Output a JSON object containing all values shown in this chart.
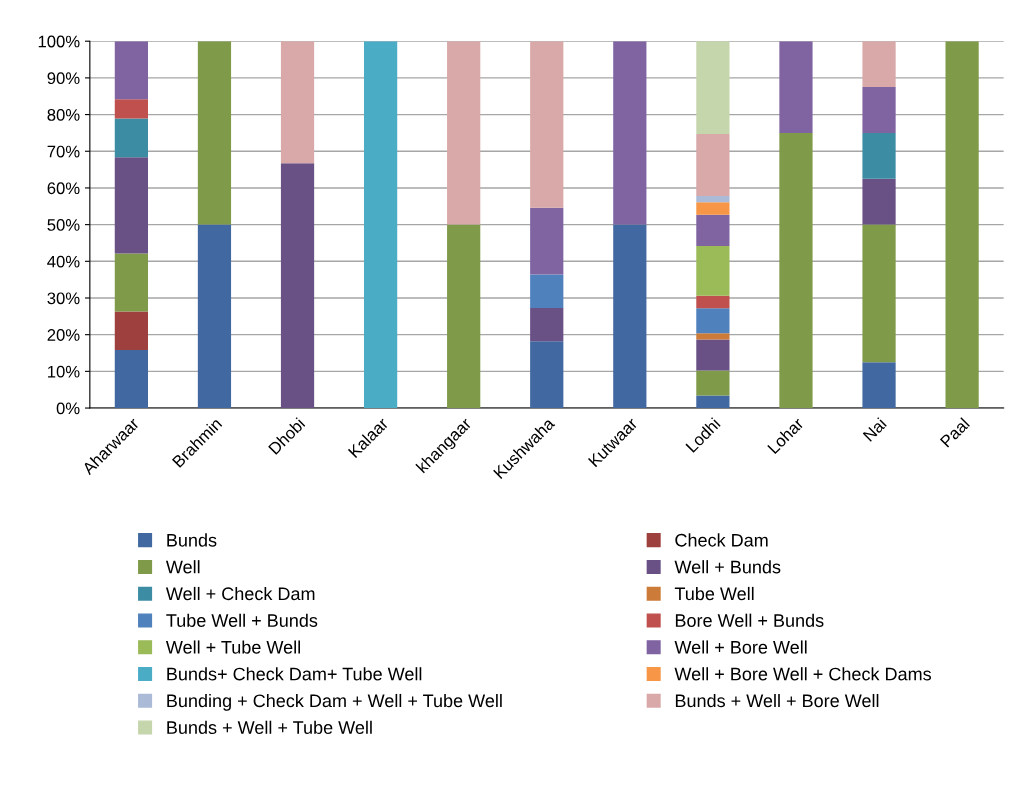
{
  "chart_data": {
    "type": "bar",
    "stacked": true,
    "grid": "y",
    "legend": "bottom",
    "categories": [
      "Aharwaar",
      "Brahmin",
      "Dhobi",
      "Kalaar",
      "khangaar",
      "Kushwaha",
      "Kutwaar",
      "Lodhi",
      "Lohar",
      "Nai",
      "Paal"
    ],
    "ylim": [
      0,
      100
    ],
    "yticks": [
      {
        "value": 0,
        "label": "0%"
      },
      {
        "value": 10,
        "label": "10%"
      },
      {
        "value": 20,
        "label": "20%"
      },
      {
        "value": 30,
        "label": "30%"
      },
      {
        "value": 40,
        "label": "40%"
      },
      {
        "value": 50,
        "label": "50%"
      },
      {
        "value": 60,
        "label": "60%"
      },
      {
        "value": 70,
        "label": "70%"
      },
      {
        "value": 80,
        "label": "80%"
      },
      {
        "value": 90,
        "label": "90%"
      },
      {
        "value": 100,
        "label": "100%"
      }
    ],
    "series": [
      {
        "name": "Bunds",
        "color": "#4168a0",
        "values": [
          15.8,
          50,
          null,
          null,
          null,
          18.2,
          50,
          3.4,
          null,
          12.5,
          null
        ]
      },
      {
        "name": "Check Dam",
        "color": "#9e413e",
        "values": [
          10.5,
          null,
          null,
          null,
          null,
          null,
          null,
          null,
          null,
          null,
          null
        ]
      },
      {
        "name": "Well",
        "color": "#7f9a48",
        "values": [
          15.8,
          50,
          null,
          null,
          50,
          null,
          null,
          6.8,
          75,
          37.5,
          100
        ]
      },
      {
        "name": "Well + Bunds",
        "color": "#695185",
        "values": [
          26.3,
          null,
          66.7,
          null,
          null,
          9.1,
          null,
          8.5,
          null,
          12.5,
          null
        ]
      },
      {
        "name": "Well + Check Dam",
        "color": "#3c8da3",
        "values": [
          10.5,
          null,
          null,
          null,
          null,
          null,
          null,
          null,
          null,
          12.5,
          null
        ]
      },
      {
        "name": "Tube Well",
        "color": "#cc7b38",
        "values": [
          null,
          null,
          null,
          null,
          null,
          null,
          null,
          1.7,
          null,
          null,
          null
        ]
      },
      {
        "name": "Tube Well + Bunds",
        "color": "#4f81bd",
        "values": [
          null,
          null,
          null,
          null,
          null,
          9.1,
          null,
          6.8,
          null,
          null,
          null
        ]
      },
      {
        "name": "Bore Well + Bunds",
        "color": "#c0504d",
        "values": [
          5.3,
          null,
          null,
          null,
          null,
          null,
          null,
          3.4,
          null,
          null,
          null
        ]
      },
      {
        "name": "Well + Tube Well",
        "color": "#9bbb59",
        "values": [
          null,
          null,
          null,
          null,
          null,
          null,
          null,
          13.6,
          null,
          null,
          null
        ]
      },
      {
        "name": "Well + Bore Well",
        "color": "#8064a2",
        "values": [
          15.8,
          null,
          null,
          null,
          null,
          18.2,
          50,
          8.5,
          25,
          12.5,
          null
        ]
      },
      {
        "name": "Bunds+ Check Dam+ Tube Well",
        "color": "#4bacc6",
        "values": [
          null,
          null,
          null,
          100,
          null,
          null,
          null,
          null,
          null,
          null,
          null
        ]
      },
      {
        "name": "Well + Bore Well + Check Dams",
        "color": "#f79646",
        "values": [
          null,
          null,
          null,
          null,
          null,
          null,
          null,
          3.4,
          null,
          null,
          null
        ]
      },
      {
        "name": "Bunding + Check Dam + Well + Tube Well",
        "color": "#aabad7",
        "values": [
          null,
          null,
          null,
          null,
          null,
          null,
          null,
          1.7,
          null,
          null,
          null
        ]
      },
      {
        "name": "Bunds + Well + Bore Well",
        "color": "#d9a9a9",
        "values": [
          null,
          null,
          33.3,
          null,
          50,
          45.4,
          null,
          16.9,
          null,
          12.5,
          null
        ]
      },
      {
        "name": "Bunds + Well + Tube Well",
        "color": "#c6d6ac",
        "values": [
          null,
          null,
          null,
          null,
          null,
          null,
          null,
          25.4,
          null,
          null,
          null
        ]
      }
    ]
  }
}
